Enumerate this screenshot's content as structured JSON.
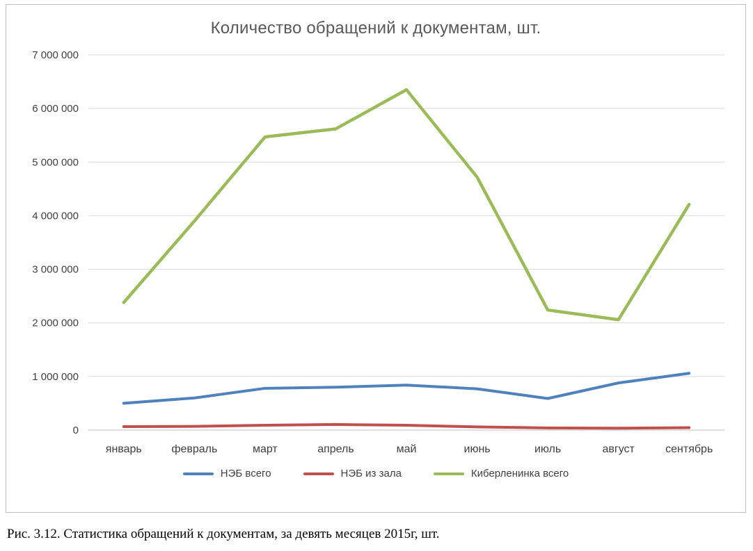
{
  "title": "Количество обращений к документам, шт.",
  "caption": "Рис. 3.12. Статистика обращений к документам, за девять месяцев 2015г, шт.",
  "chart_data": {
    "type": "line",
    "title": "Количество обращений к документам, шт.",
    "categories": [
      "январь",
      "февраль",
      "март",
      "апрель",
      "май",
      "июнь",
      "июль",
      "август",
      "сентябрь"
    ],
    "series": [
      {
        "name": "НЭБ всего",
        "color": "#4F81BD",
        "values": [
          500000,
          600000,
          780000,
          800000,
          840000,
          770000,
          590000,
          880000,
          1060000
        ]
      },
      {
        "name": "НЭБ из зала",
        "color": "#C0504D",
        "values": [
          65000,
          70000,
          90000,
          105000,
          90000,
          60000,
          40000,
          35000,
          45000
        ]
      },
      {
        "name": "Киберленинка всего",
        "color": "#9BBB59",
        "values": [
          2380000,
          3900000,
          5470000,
          5620000,
          6350000,
          4720000,
          2240000,
          2060000,
          4210000
        ]
      }
    ],
    "ylim": [
      0,
      7000000
    ],
    "ytick_interval": 1000000,
    "ytick_labels": [
      "0",
      "1 000 000",
      "2 000 000",
      "3 000 000",
      "4 000 000",
      "5 000 000",
      "6 000 000",
      "7 000 000"
    ],
    "grid": true,
    "legend_position": "bottom",
    "grid_color": "#d9d9d9",
    "axis_color": "#bfbfbf"
  }
}
